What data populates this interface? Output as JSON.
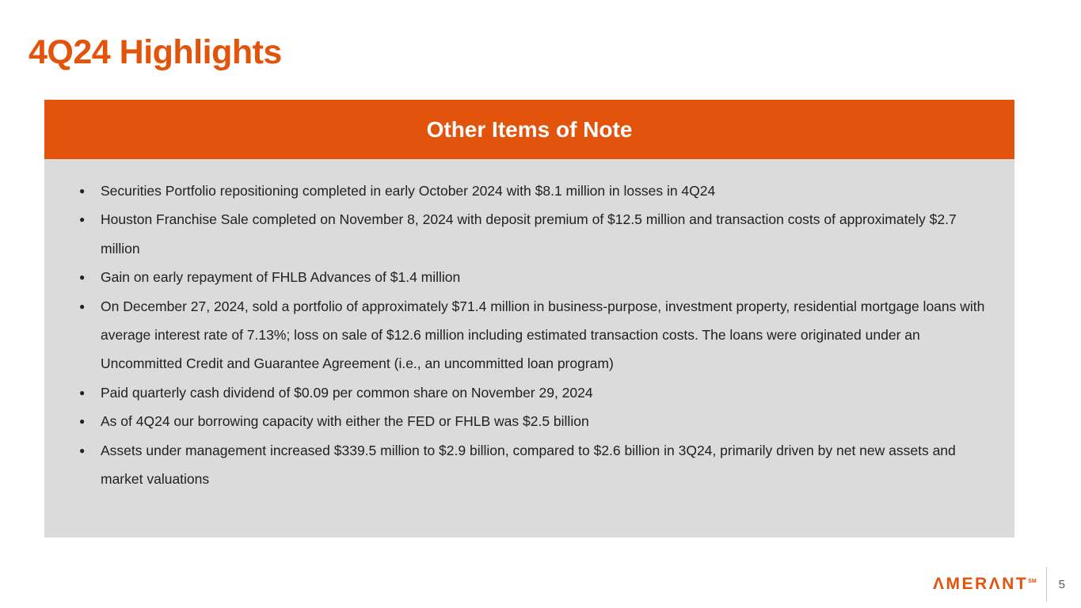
{
  "title": "4Q24 Highlights",
  "panel": {
    "header": "Other Items of Note",
    "bullets": [
      "Securities Portfolio repositioning completed in early October 2024 with $8.1 million in losses in 4Q24",
      "Houston Franchise Sale completed on November 8, 2024 with deposit premium of $12.5 million and transaction costs of approximately $2.7 million",
      "Gain on early repayment of FHLB Advances of $1.4 million",
      "On December 27, 2024, sold a portfolio of approximately $71.4 million in business-purpose, investment property, residential mortgage loans with average interest rate of 7.13%; loss on sale of $12.6 million including estimated transaction costs. The loans were originated under an Uncommitted Credit and Guarantee Agreement (i.e., an uncommitted loan program)",
      "Paid quarterly cash dividend of $0.09 per common share on November 29, 2024",
      "As of 4Q24 our borrowing capacity with either the FED or FHLB was $2.5 billion",
      "Assets under management increased $339.5 million to $2.9 billion, compared to $2.6 billion in 3Q24, primarily driven by net new assets and market valuations"
    ],
    "bullet_marker": "●"
  },
  "footer": {
    "logo_text": "ΛMERΛNT",
    "logo_sm": "SM",
    "page_number": "5"
  },
  "colors": {
    "accent_orange": "#e2530b",
    "panel_gray": "#dbdbdb",
    "text_dark": "#212121",
    "page_number_gray": "#595959"
  }
}
